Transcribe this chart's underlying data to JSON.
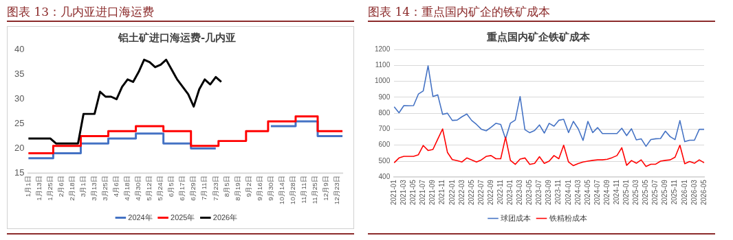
{
  "chart_data": [
    {
      "type": "line",
      "title": "图表 13：几内亚进口海运费",
      "subtitle": "铝土矿进口海运费-几内亚",
      "categories": [
        "1月1日",
        null,
        "1月13日",
        null,
        "1月25日",
        null,
        "2月6日",
        null,
        "2月18日",
        null,
        "3月1日",
        null,
        "3月13日",
        null,
        "3月25日",
        null,
        "4月6日",
        null,
        "4月18日",
        null,
        "4月30日",
        null,
        "5月12日",
        null,
        "5月24日",
        null,
        "6月5日",
        null,
        "6月17日",
        null,
        "6月29日",
        null,
        "7月11日",
        null,
        "7月23日",
        null,
        "8月5日",
        null,
        "8月19日",
        null,
        "9月2日",
        null,
        "9月16日",
        null,
        "9月30日",
        null,
        "10月14日",
        null,
        "10月28日",
        null,
        "11月11日",
        null,
        "11月25日",
        null,
        "12月9日",
        null,
        "12月23日",
        null
      ],
      "series": [
        {
          "name": "2024年",
          "type": "step",
          "color": "#4472c4",
          "values": [
            18,
            18,
            18,
            18,
            18,
            19,
            19,
            19,
            19,
            19,
            21,
            21,
            21,
            21,
            21,
            22,
            22,
            22,
            22,
            22,
            23,
            23,
            23,
            23,
            23,
            21,
            21,
            21,
            21,
            21,
            20,
            20,
            20,
            20,
            20,
            null,
            null,
            null,
            null,
            null,
            null,
            null,
            null,
            null,
            24.5,
            24.5,
            24.5,
            24.5,
            24.5,
            25.5,
            25.5,
            25.5,
            25.5,
            22.5,
            22.5,
            22.5,
            22.5,
            22.5
          ]
        },
        {
          "name": "2025年",
          "type": "step",
          "color": "#ff0000",
          "values": [
            19,
            19,
            19,
            19,
            19,
            20.5,
            20.5,
            20.5,
            20.5,
            20.5,
            22.5,
            22.5,
            22.5,
            22.5,
            22.5,
            23.5,
            23.5,
            23.5,
            23.5,
            23.5,
            24.5,
            24.5,
            24.5,
            24.5,
            24.5,
            23.5,
            23.5,
            23.5,
            23.5,
            23.5,
            20.5,
            20.5,
            20.5,
            20.5,
            20.5,
            21.5,
            21.5,
            21.5,
            21.5,
            21.5,
            23.5,
            23.5,
            23.5,
            23.5,
            25.5,
            25.5,
            25.5,
            25.5,
            25.5,
            26.5,
            26.5,
            26.5,
            26.5,
            23.5,
            23.5,
            23.5,
            23.5,
            23.5
          ]
        },
        {
          "name": "2026年",
          "type": "line",
          "color": "#000000",
          "values": [
            22,
            22,
            22,
            22,
            22,
            21,
            21,
            21,
            21,
            21,
            27,
            27,
            27,
            31.5,
            30.5,
            30.5,
            30,
            32.5,
            34,
            33.5,
            35.5,
            38,
            37.5,
            36.5,
            37,
            38,
            36,
            34,
            32.5,
            31,
            28.5,
            32,
            34,
            33,
            34.5,
            33.5,
            null,
            null,
            null,
            null,
            null,
            null,
            null,
            null,
            null,
            null,
            null,
            null,
            null,
            null,
            null,
            null,
            null,
            null,
            null,
            null,
            null,
            null
          ]
        }
      ],
      "ylim": [
        15,
        40
      ],
      "yticks": [
        15,
        20,
        25,
        30,
        35,
        40
      ],
      "grid": false,
      "legend": "bottom"
    },
    {
      "type": "line",
      "title": "图表 14：重点国内矿企的铁矿成本",
      "subtitle": "重点国内矿企铁矿成本",
      "categories": [
        "2021-01",
        null,
        "2021-03",
        null,
        "2021-05",
        null,
        "2021-07",
        null,
        "2021-09",
        null,
        "2021-11",
        null,
        "2022-01",
        null,
        "2022-03",
        null,
        "2022-05",
        null,
        "2022-07",
        null,
        "2022-09",
        null,
        "2022-11",
        null,
        "2023-01",
        null,
        "2023-03",
        null,
        "2023-05",
        null,
        "2023-07",
        null,
        "2023-09",
        null,
        "2023-11",
        null,
        "2024-01",
        null,
        "2024-03",
        null,
        "2024-05",
        null,
        "2024-07",
        null,
        "2024-09",
        null,
        "2024-11",
        null,
        "2025-01",
        null,
        "2025-03",
        null,
        "2025-05",
        null,
        "2025-07",
        null,
        "2025-09",
        null,
        "2025-11",
        null,
        "2026-01",
        null,
        "2026-03",
        null,
        "2026-05"
      ],
      "series": [
        {
          "name": "球团成本",
          "color": "#4472c4",
          "values": [
            840,
            803,
            848,
            847,
            848,
            920,
            940,
            1097,
            905,
            915,
            793,
            800,
            755,
            757,
            778,
            795,
            755,
            730,
            700,
            690,
            712,
            737,
            730,
            640,
            738,
            757,
            905,
            697,
            678,
            692,
            727,
            676,
            737,
            719,
            756,
            762,
            679,
            749,
            703,
            630,
            749,
            679,
            710,
            673,
            673,
            673,
            673,
            706,
            660,
            703,
            633,
            640,
            593,
            635,
            640,
            642,
            688,
            653,
            635,
            754,
            622,
            631,
            631,
            699,
            699
          ]
        },
        {
          "name": "铁精粉成本",
          "color": "#ff0000",
          "values": [
            490,
            520,
            530,
            530,
            530,
            540,
            598,
            567,
            573,
            638,
            702,
            555,
            510,
            503,
            495,
            520,
            508,
            495,
            508,
            530,
            535,
            515,
            515,
            650,
            505,
            480,
            513,
            520,
            480,
            486,
            528,
            486,
            500,
            535,
            515,
            600,
            495,
            472,
            485,
            495,
            500,
            505,
            508,
            508,
            512,
            522,
            535,
            584,
            474,
            504,
            487,
            508,
            467,
            481,
            481,
            500,
            505,
            508,
            525,
            600,
            484,
            498,
            487,
            508,
            490
          ]
        }
      ],
      "ylim": [
        400,
        1200
      ],
      "yticks": [
        400,
        500,
        600,
        700,
        800,
        900,
        1000,
        1100,
        1200
      ],
      "grid": "y",
      "legend": "bottom"
    }
  ]
}
